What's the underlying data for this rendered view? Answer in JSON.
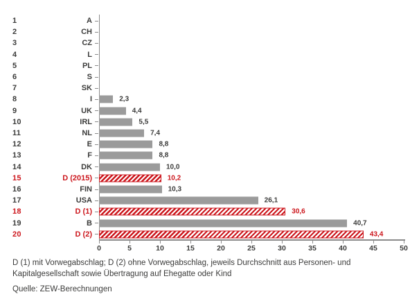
{
  "chart_data": {
    "type": "bar",
    "orientation": "horizontal",
    "title": "",
    "xlabel": "",
    "ylabel": "",
    "xlim": [
      0,
      50
    ],
    "xticks": [
      0,
      5,
      10,
      15,
      20,
      25,
      30,
      35,
      40,
      45,
      50
    ],
    "grid": false,
    "legend": "none",
    "decimal_separator": ",",
    "rows": [
      {
        "rank": "1",
        "label": "A",
        "value": 0,
        "value_label": "",
        "highlight": false
      },
      {
        "rank": "2",
        "label": "CH",
        "value": 0,
        "value_label": "",
        "highlight": false
      },
      {
        "rank": "3",
        "label": "CZ",
        "value": 0,
        "value_label": "",
        "highlight": false
      },
      {
        "rank": "4",
        "label": "L",
        "value": 0,
        "value_label": "",
        "highlight": false
      },
      {
        "rank": "5",
        "label": "PL",
        "value": 0,
        "value_label": "",
        "highlight": false
      },
      {
        "rank": "6",
        "label": "S",
        "value": 0,
        "value_label": "",
        "highlight": false
      },
      {
        "rank": "7",
        "label": "SK",
        "value": 0,
        "value_label": "",
        "highlight": false
      },
      {
        "rank": "8",
        "label": "I",
        "value": 2.3,
        "value_label": "2,3",
        "highlight": false
      },
      {
        "rank": "9",
        "label": "UK",
        "value": 4.4,
        "value_label": "4,4",
        "highlight": false
      },
      {
        "rank": "10",
        "label": "IRL",
        "value": 5.5,
        "value_label": "5,5",
        "highlight": false
      },
      {
        "rank": "11",
        "label": "NL",
        "value": 7.4,
        "value_label": "7,4",
        "highlight": false
      },
      {
        "rank": "12",
        "label": "E",
        "value": 8.8,
        "value_label": "8,8",
        "highlight": false
      },
      {
        "rank": "13",
        "label": "F",
        "value": 8.8,
        "value_label": "8,8",
        "highlight": false
      },
      {
        "rank": "14",
        "label": "DK",
        "value": 10.0,
        "value_label": "10,0",
        "highlight": false
      },
      {
        "rank": "15",
        "label": "D (2015)",
        "value": 10.2,
        "value_label": "10,2",
        "highlight": true
      },
      {
        "rank": "16",
        "label": "FIN",
        "value": 10.3,
        "value_label": "10,3",
        "highlight": false
      },
      {
        "rank": "17",
        "label": "USA",
        "value": 26.1,
        "value_label": "26,1",
        "highlight": false
      },
      {
        "rank": "18",
        "label": "D (1)",
        "value": 30.6,
        "value_label": "30,6",
        "highlight": true
      },
      {
        "rank": "19",
        "label": "B",
        "value": 40.7,
        "value_label": "40,7",
        "highlight": false
      },
      {
        "rank": "20",
        "label": "D (2)",
        "value": 43.4,
        "value_label": "43,4",
        "highlight": true
      }
    ],
    "colors": {
      "bar_gray": "#9b9b9b",
      "highlight_red": "#cc161c",
      "text": "#3b3b3a",
      "axis": "#8a8a8a"
    }
  },
  "footnote": "D (1) mit Vorwegabschlag; D (2) ohne Vorwegabschlag, jeweils Durchschnitt aus Personen- und Kapitalgesellschaft sowie Übertragung auf Ehegatte oder Kind",
  "source": "Quelle: ZEW-Berechnungen"
}
